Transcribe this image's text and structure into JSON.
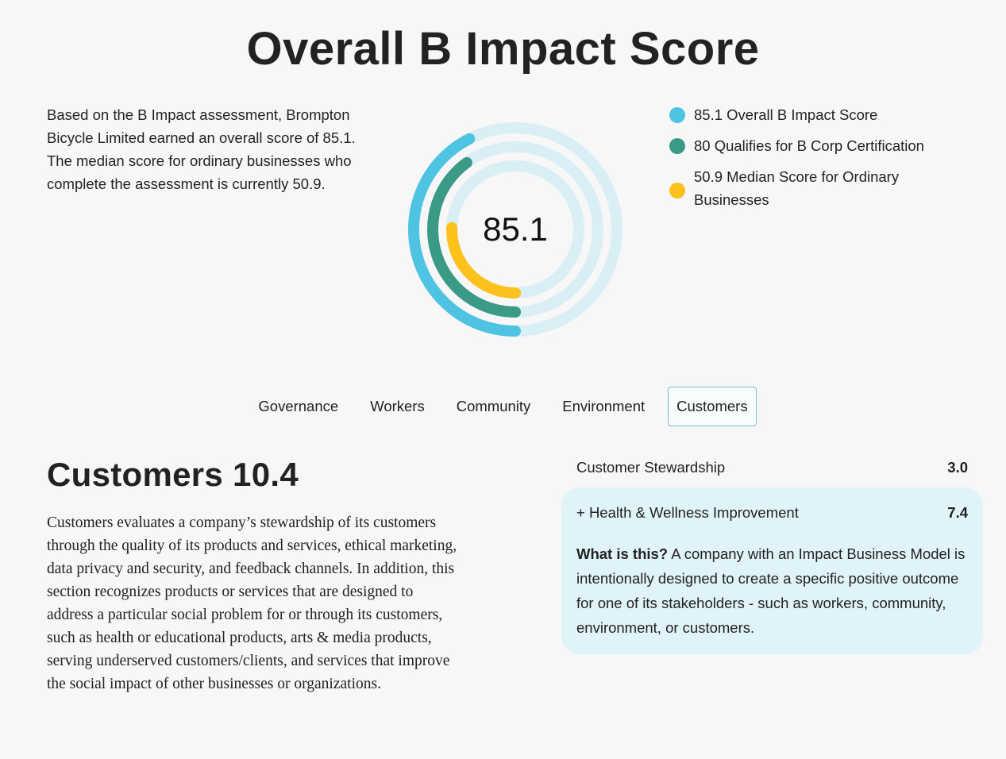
{
  "page": {
    "title": "Overall B Impact Score",
    "intro": "Based on the B Impact assessment, Brompton Bicycle Limited earned an overall score of 85.1. The median score for ordinary businesses who complete the assessment is currently 50.9."
  },
  "chart_data": {
    "type": "radial-bar",
    "center_label": "85.1",
    "max": 200,
    "series": [
      {
        "name": "Overall B Impact Score",
        "value": 85.1,
        "color": "#4fc4e2"
      },
      {
        "name": "Qualifies for B Corp Certification",
        "value": 80,
        "color": "#3a9a85"
      },
      {
        "name": "Median Score for Ordinary Businesses",
        "value": 50.9,
        "color": "#fcc21b"
      }
    ],
    "track_color": "#d9eef5"
  },
  "legend": [
    {
      "text": "85.1 Overall B Impact Score",
      "color": "#4fc4e2"
    },
    {
      "text": "80 Qualifies for B Corp Certification",
      "color": "#3a9a85"
    },
    {
      "text": "50.9 Median Score for Ordinary Businesses",
      "color": "#fcc21b"
    }
  ],
  "tabs": [
    {
      "label": "Governance",
      "active": false
    },
    {
      "label": "Workers",
      "active": false
    },
    {
      "label": "Community",
      "active": false
    },
    {
      "label": "Environment",
      "active": false
    },
    {
      "label": "Customers",
      "active": true
    }
  ],
  "section": {
    "title": "Customers 10.4",
    "body": "Customers evaluates a company’s stewardship of its customers through the quality of its products and services, ethical marketing, data privacy and security, and feedback channels. In addition, this section recognizes products or services that are designed to address a particular social problem for or through its customers, such as health or educational products, arts & media products, serving underserved customers/clients, and services that improve the social impact of other businesses or organizations."
  },
  "subscores": [
    {
      "label": "Customer Stewardship",
      "value": "3.0"
    },
    {
      "label": "+ Health & Wellness Improvement",
      "value": "7.4"
    }
  ],
  "info": {
    "heading": "What is this?",
    "text": " A company with an Impact Business Model is intentionally designed to create a specific positive outcome for one of its stakeholders - such as workers, community, environment, or customers."
  }
}
